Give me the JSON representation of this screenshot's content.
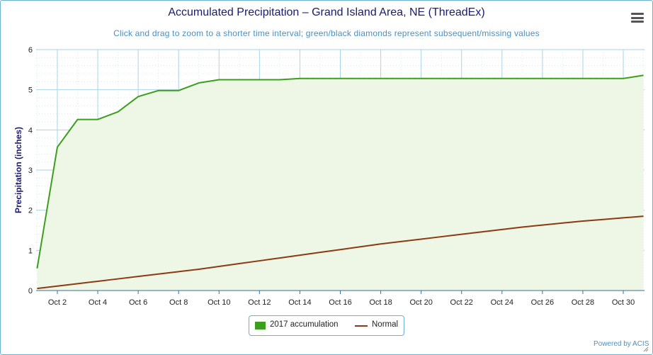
{
  "title": "Accumulated Precipitation – Grand Island Area, NE (ThreadEx)",
  "subtitle": "Click and drag to zoom to a shorter time interval; green/black diamonds represent subsequent/missing values",
  "credit": "Powered by ACIS",
  "colors": {
    "accumulation": "#3c9e1e",
    "accumulation_fill": "#eef7e6",
    "normal": "#8b3a12",
    "grid": "#a8d4e6",
    "title": "#1a1a6e",
    "subtitle": "#4a90c2"
  },
  "legend": {
    "series1": "2017 accumulation",
    "series2": "Normal"
  },
  "chart_data": {
    "type": "area",
    "xlabel": "",
    "ylabel": "Precipitation (inches)",
    "ylim": [
      0,
      6
    ],
    "yticks": [
      0,
      1,
      2,
      3,
      4,
      5,
      6
    ],
    "xlim": [
      1,
      31
    ],
    "xtick_days": [
      2,
      4,
      6,
      8,
      10,
      12,
      14,
      16,
      18,
      20,
      22,
      24,
      26,
      28,
      30
    ],
    "xtick_labels": [
      "Oct 2",
      "Oct 4",
      "Oct 6",
      "Oct 8",
      "Oct 10",
      "Oct 12",
      "Oct 14",
      "Oct 16",
      "Oct 18",
      "Oct 20",
      "Oct 22",
      "Oct 24",
      "Oct 26",
      "Oct 28",
      "Oct 30"
    ],
    "grid": true,
    "legend_position": "bottom-center",
    "series": [
      {
        "name": "2017 accumulation",
        "kind": "area",
        "x": [
          1,
          2,
          3,
          4,
          5,
          6,
          7,
          8,
          9,
          10,
          11,
          12,
          13,
          14,
          15,
          16,
          17,
          18,
          19,
          20,
          21,
          22,
          23,
          24,
          25,
          26,
          27,
          28,
          29,
          30,
          31
        ],
        "values": [
          0.55,
          3.57,
          4.26,
          4.26,
          4.45,
          4.83,
          4.98,
          4.98,
          5.17,
          5.25,
          5.25,
          5.25,
          5.25,
          5.28,
          5.28,
          5.28,
          5.28,
          5.28,
          5.28,
          5.28,
          5.28,
          5.28,
          5.28,
          5.28,
          5.28,
          5.28,
          5.28,
          5.28,
          5.28,
          5.28,
          5.36
        ]
      },
      {
        "name": "Normal",
        "kind": "line",
        "x": [
          1,
          2,
          3,
          4,
          5,
          6,
          7,
          8,
          9,
          10,
          11,
          12,
          13,
          14,
          15,
          16,
          17,
          18,
          19,
          20,
          21,
          22,
          23,
          24,
          25,
          26,
          27,
          28,
          29,
          30,
          31
        ],
        "values": [
          0.05,
          0.11,
          0.17,
          0.23,
          0.29,
          0.35,
          0.41,
          0.47,
          0.53,
          0.6,
          0.67,
          0.74,
          0.81,
          0.88,
          0.95,
          1.02,
          1.09,
          1.16,
          1.22,
          1.28,
          1.34,
          1.4,
          1.46,
          1.52,
          1.58,
          1.63,
          1.68,
          1.73,
          1.77,
          1.81,
          1.85
        ]
      }
    ]
  }
}
